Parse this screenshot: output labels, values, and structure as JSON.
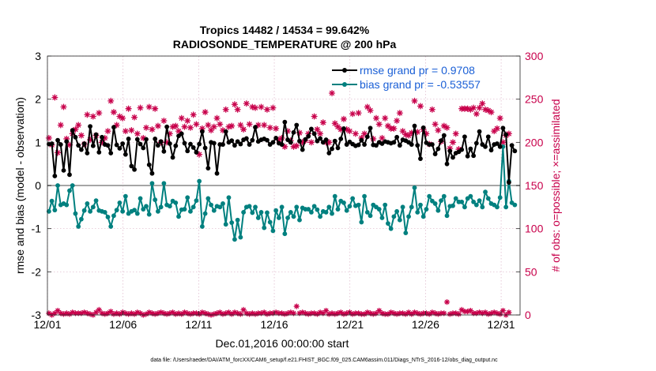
{
  "chart_data": {
    "type": "line",
    "title": "Tropics 14482 / 14534 = 99.642%",
    "subtitle": "RADIOSONDE_TEMPERATURE @ 200 hPa",
    "xlabel": "Dec.01,2016 00:00:00 start",
    "ylabel": "rmse and bias (model - observation)",
    "ylabel_right": "# of obs: o=possible; ×=assimilated",
    "footnote": "data file: /Users/raeder/DAI/ATM_forcXX/CAM6_setup/f.e21.FHIST_BGC.f09_025.CAM6assim.011/Diags_NTrS_2016-12/obs_diag_output.nc",
    "xlim": [
      0,
      31.25
    ],
    "ylim": [
      -3,
      3
    ],
    "ylim_right": [
      0,
      300
    ],
    "xticks": [
      0,
      5,
      10,
      15,
      20,
      25,
      30
    ],
    "xtick_labels": [
      "12/01",
      "12/06",
      "12/11",
      "12/16",
      "12/21",
      "12/26",
      "12/31"
    ],
    "yticks": [
      -3,
      -2,
      -1,
      0,
      1,
      2,
      3
    ],
    "ytick_labels": [
      "-3",
      "-2",
      "-1",
      "0",
      "1",
      "2",
      "3"
    ],
    "yticks_right": [
      0,
      50,
      100,
      150,
      200,
      250,
      300
    ],
    "ytick_labels_right": [
      "0",
      "50",
      "100",
      "150",
      "200",
      "250",
      "300"
    ],
    "grid": true,
    "legend_position": "top-right",
    "colors": {
      "rmse": "#000000",
      "bias": "#00807f",
      "obs": "#c8004b",
      "zero_line": "#a6a6a6",
      "grid": "#dcb4c8"
    },
    "series": [
      {
        "name": "rmse grand pr = 0.9708",
        "axis": "left",
        "values": [
          0.96,
          0.97,
          0.22,
          1.05,
          0.95,
          0.35,
          1.02,
          0.25,
          1.28,
          1.12,
          0.93,
          0.83,
          0.97,
          0.75,
          1.37,
          0.92,
          1.18,
          0.77,
          1.12,
          0.95,
          0.93,
          0.75,
          1.35,
          0.94,
          0.86,
          0.97,
          0.72,
          1.08,
          0.45,
          0.37,
          1.07,
          0.96,
          0.87,
          1.07,
          0.48,
          0.28,
          1.08,
          0.93,
          1.02,
          0.79,
          1.36,
          0.97,
          0.65,
          0.92,
          1.15,
          1.2,
          0.98,
          0.8,
          0.96,
          0.88,
          0.77,
          0.96,
          1.25,
          0.87,
          0.4,
          1.0,
          0.98,
          0.28,
          0.95,
          0.95,
          1.25,
          1.0,
          1.04,
          0.93,
          1.02,
          0.96,
          1.06,
          1.09,
          0.95,
          1.05,
          1.35,
          1.02,
          1.06,
          1.08,
          1.05,
          0.95,
          1.0,
          1.1,
          0.98,
          0.95,
          1.47,
          1.06,
          1.0,
          1.23,
          1.4,
          1.03,
          0.83,
          1.07,
          1.14,
          1.31,
          1.2,
          1.03,
          1.09,
          1.0,
          1.06,
          0.75,
          0.85,
          1.03,
          0.87,
          1.08,
          1.32,
          0.95,
          1.01,
          0.96,
          0.92,
          0.94,
          1.05,
          0.95,
          1.13,
          1.33,
          0.94,
          0.93,
          1.0,
          0.97,
          1.02,
          1.0,
          0.98,
          1.0,
          1.12,
          0.93,
          1.06,
          1.04,
          1.0,
          0.95,
          1.38,
          0.93,
          0.62,
          1.34,
          0.99,
          0.95,
          0.95,
          0.73,
          0.85,
          1.04,
          1.16,
          0.5,
          0.8,
          0.65,
          0.75,
          0.78,
          0.83,
          1.13,
          0.68,
          0.85,
          0.69,
          0.98,
          1.25,
          0.95,
          0.9,
          1.13,
          0.82,
          0.95,
          0.97,
          0.9,
          1.33,
          1.18,
          0.07,
          0.93,
          0.8
        ]
      },
      {
        "name": "bias grand pr = -0.53557",
        "axis": "left",
        "values": [
          -0.6,
          -0.36,
          -0.57,
          0.0,
          -0.45,
          -0.42,
          -0.45,
          -0.12,
          0.0,
          -0.65,
          -0.95,
          -0.78,
          -0.58,
          -0.42,
          -0.6,
          -0.5,
          -0.35,
          -0.58,
          -0.6,
          -0.62,
          -0.73,
          -0.95,
          -0.7,
          -0.57,
          -0.4,
          -0.6,
          -0.25,
          -0.65,
          -0.6,
          -0.57,
          -0.65,
          -0.3,
          -0.55,
          -0.48,
          -0.67,
          0.05,
          -0.33,
          -0.6,
          -0.5,
          0.05,
          -0.45,
          -0.48,
          -0.36,
          -0.4,
          -0.72,
          -0.56,
          -0.55,
          -0.28,
          -0.6,
          -0.5,
          -0.35,
          0.1,
          -0.95,
          -0.65,
          -0.3,
          -0.45,
          -0.58,
          -0.48,
          -0.5,
          -0.42,
          -0.9,
          -0.28,
          -0.86,
          -1.25,
          -0.8,
          -1.2,
          -0.62,
          -0.5,
          -0.48,
          -0.63,
          -0.5,
          -0.75,
          -0.62,
          -0.98,
          -0.63,
          -0.85,
          -1.05,
          -0.58,
          -0.75,
          -0.5,
          -1.12,
          -0.75,
          -0.62,
          -0.72,
          -0.5,
          -0.8,
          -0.52,
          -0.55,
          -0.55,
          -0.62,
          -0.48,
          -0.56,
          -0.72,
          -0.6,
          -0.62,
          -0.5,
          -0.65,
          -0.25,
          -0.55,
          -0.36,
          -0.4,
          -0.58,
          -0.48,
          -0.3,
          -0.47,
          -0.45,
          -0.85,
          -0.25,
          -0.62,
          -0.7,
          -0.45,
          -0.5,
          -0.55,
          -0.75,
          -0.45,
          -0.88,
          -1.0,
          -0.72,
          -0.6,
          -0.8,
          -0.5,
          -1.1,
          -0.72,
          -0.5,
          -0.05,
          -0.62,
          -0.45,
          -0.72,
          -0.55,
          -0.25,
          -0.36,
          -0.42,
          -0.58,
          -0.35,
          -0.25,
          -0.7,
          -0.48,
          -0.47,
          -0.3,
          -0.38,
          -0.38,
          -0.5,
          -0.3,
          -0.25,
          -0.38,
          -0.45,
          -0.35,
          -0.5,
          -0.15,
          -0.3,
          -0.42,
          -0.45,
          -0.5,
          -0.28,
          0.9,
          -0.5,
          0.1,
          -0.4,
          -0.45
        ]
      },
      {
        "name": "obs possible / assimilated",
        "axis": "right",
        "values": [
          205,
          197,
          252,
          188,
          220,
          241,
          204,
          197,
          210,
          215,
          220,
          208,
          198,
          232,
          203,
          230,
          208,
          234,
          200,
          205,
          213,
          248,
          235,
          220,
          230,
          228,
          213,
          239,
          214,
          229,
          210,
          240,
          205,
          217,
          241,
          215,
          239,
          219,
          200,
          225,
          200,
          210,
          218,
          219,
          213,
          228,
          218,
          225,
          217,
          232,
          221,
          186,
          216,
          235,
          220,
          214,
          218,
          228,
          221,
          214,
          238,
          218,
          219,
          244,
          238,
          220,
          215,
          245,
          221,
          241,
          240,
          220,
          241,
          220,
          238,
          217,
          240,
          216,
          203,
          205,
          195,
          213,
          202,
          195,
          196,
          211,
          200,
          202,
          210,
          200,
          230,
          215,
          210,
          223,
          200,
          200,
          257,
          222,
          218,
          215,
          227,
          215,
          213,
          233,
          210,
          234,
          205,
          210,
          241,
          237,
          204,
          228,
          221,
          205,
          228,
          219,
          216,
          216,
          225,
          234,
          213,
          209,
          208,
          211,
          248,
          212,
          242,
          215,
          210,
          198,
          238,
          221,
          214,
          201,
          219,
          217,
          193,
          200,
          210,
          192,
          239,
          239,
          239,
          238,
          240,
          233,
          240,
          245,
          238,
          237,
          235,
          213,
          216,
          228,
          200,
          208,
          210
        ]
      },
      {
        "name": "obs near-zero count",
        "axis": "right",
        "values": [
          2,
          0,
          2,
          5,
          2,
          1,
          2,
          1,
          3,
          2,
          2,
          2,
          3,
          2,
          1,
          0,
          3,
          6,
          2,
          1,
          2,
          4,
          1,
          2,
          1,
          3,
          2,
          1,
          2,
          1,
          3,
          2,
          0,
          1,
          3,
          2,
          1,
          2,
          3,
          2,
          1,
          2,
          3,
          1,
          2,
          1,
          3,
          2,
          1,
          2,
          2,
          1,
          3,
          2,
          1,
          0,
          1,
          2,
          3,
          1,
          2,
          3,
          1,
          3,
          2,
          1,
          6,
          2,
          1,
          2,
          1,
          2,
          2,
          3,
          1,
          2,
          2,
          3,
          2,
          2,
          1,
          2,
          3,
          2,
          10,
          2,
          3,
          2,
          1,
          2,
          2,
          1,
          3,
          2,
          5,
          1,
          2,
          1,
          2,
          3,
          1,
          2,
          3,
          1,
          2,
          2,
          1,
          1,
          3,
          2,
          1,
          2,
          5,
          2,
          1,
          1,
          3,
          2,
          1,
          2,
          2,
          1,
          3,
          1,
          3,
          2,
          1,
          2,
          2,
          1,
          3,
          2,
          1,
          2,
          2,
          15,
          1,
          2,
          2,
          1,
          6,
          4,
          4,
          5,
          2,
          2,
          3,
          2,
          3,
          1,
          2,
          3,
          2,
          1,
          5,
          0,
          3
        ]
      }
    ]
  }
}
